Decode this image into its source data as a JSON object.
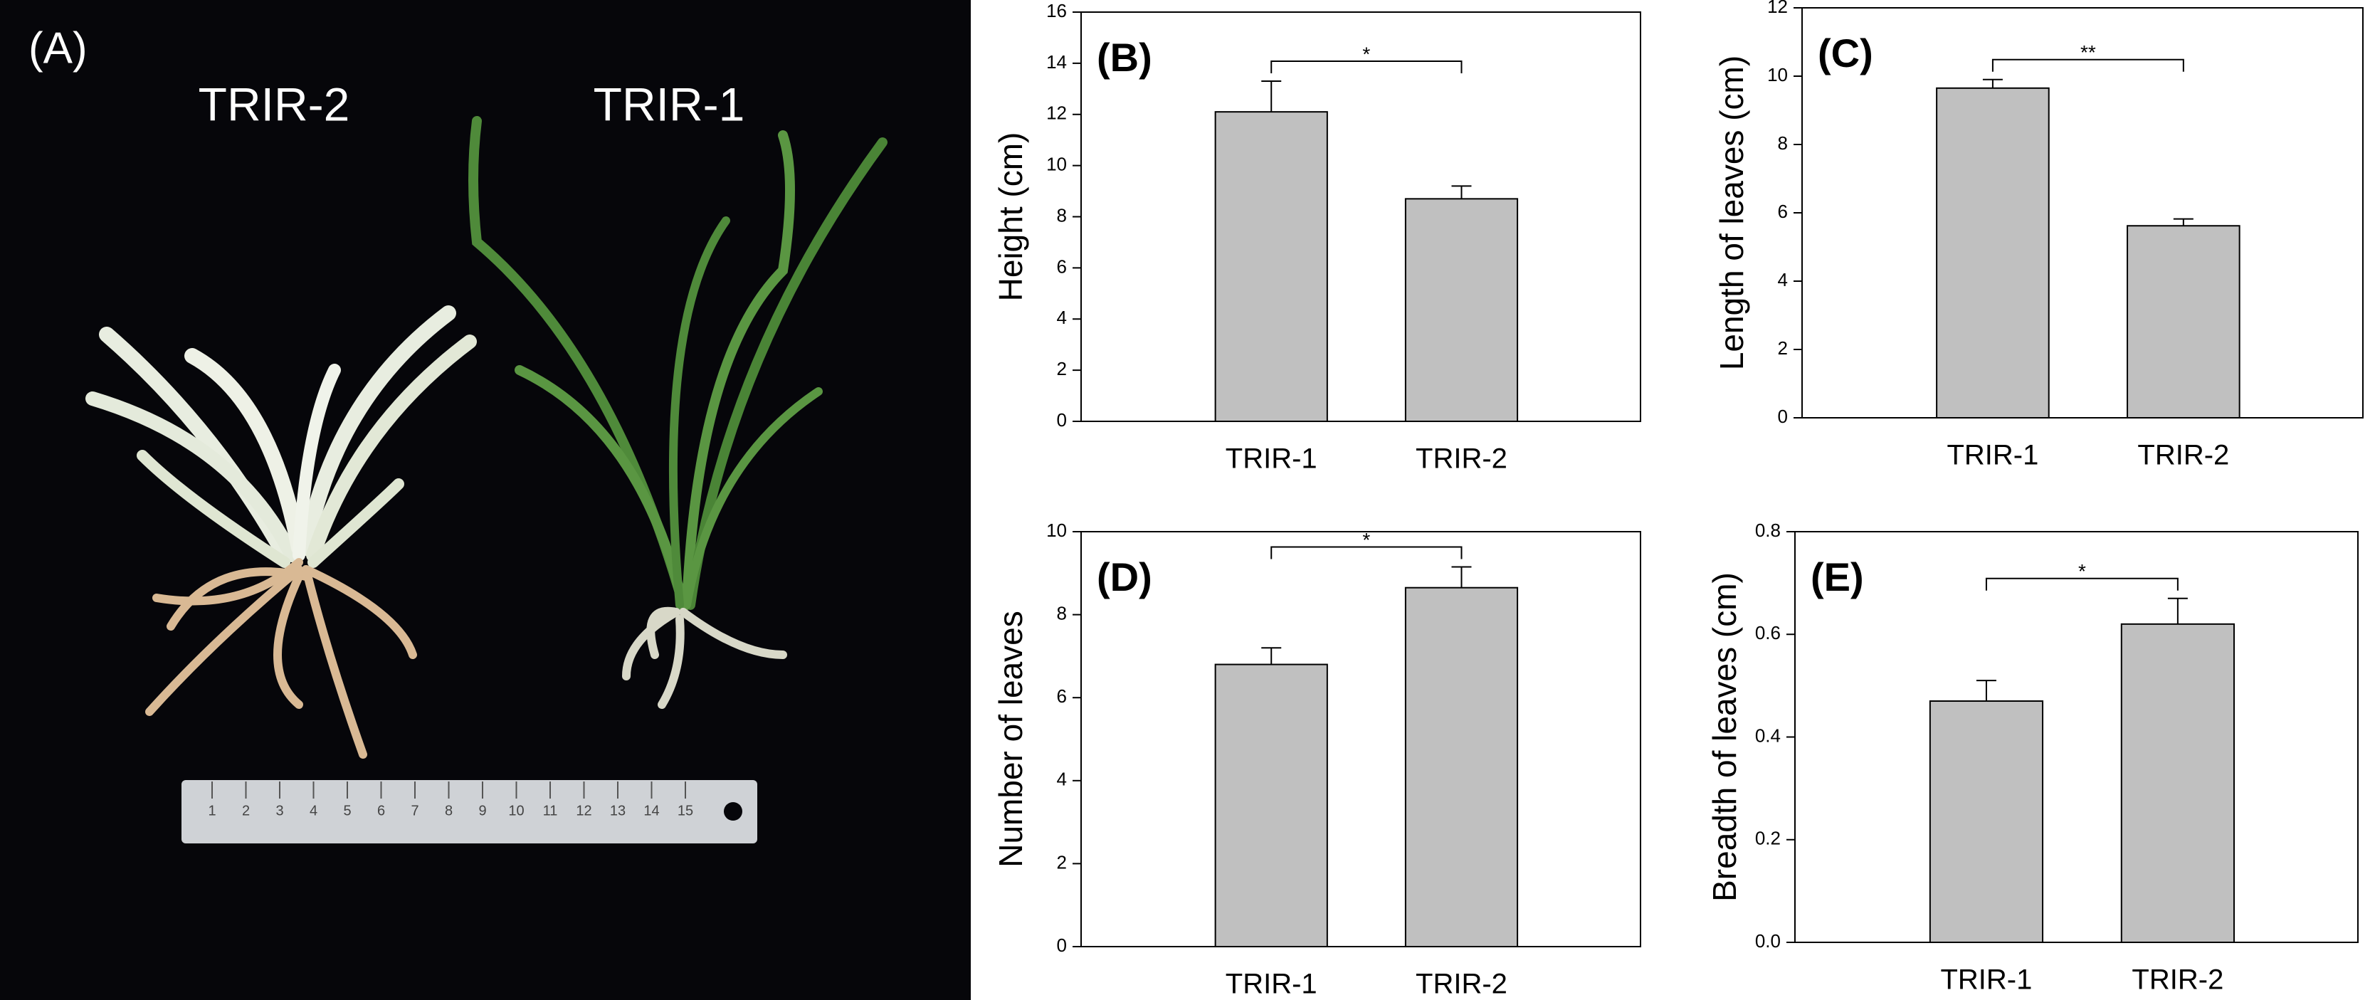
{
  "photo": {
    "label": "(A)",
    "specimens": [
      "TRIR-2",
      "TRIR-1"
    ],
    "ruler_numbers": [
      1,
      2,
      3,
      4,
      5,
      6,
      7,
      8,
      9,
      10,
      11,
      12,
      13,
      14,
      15
    ]
  },
  "chart_data": [
    {
      "type": "bar",
      "panel": "(B)",
      "ylabel": "Height (cm)",
      "categories": [
        "TRIR-1",
        "TRIR-2"
      ],
      "values": [
        12.1,
        8.7
      ],
      "errors": [
        1.2,
        0.5
      ],
      "color": "#c0c0c0",
      "ylim": [
        0,
        16
      ],
      "yticks": [
        0,
        2,
        4,
        6,
        8,
        10,
        12,
        14,
        16
      ],
      "significance": "*"
    },
    {
      "type": "bar",
      "panel": "(C)",
      "ylabel": "Length of leaves (cm)",
      "categories": [
        "TRIR-1",
        "TRIR-2"
      ],
      "values": [
        9.65,
        5.62
      ],
      "errors": [
        0.25,
        0.2
      ],
      "color": "#c0c0c0",
      "ylim": [
        0,
        12
      ],
      "yticks": [
        0,
        2,
        4,
        6,
        8,
        10,
        12
      ],
      "significance": "**"
    },
    {
      "type": "bar",
      "panel": "(D)",
      "ylabel": "Number of leaves",
      "categories": [
        "TRIR-1",
        "TRIR-2"
      ],
      "values": [
        6.8,
        8.65
      ],
      "errors": [
        0.4,
        0.5
      ],
      "color": "#c0c0c0",
      "ylim": [
        0,
        10
      ],
      "yticks": [
        0,
        2,
        4,
        6,
        8,
        10
      ],
      "significance": "*"
    },
    {
      "type": "bar",
      "panel": "(E)",
      "ylabel": "Breadth of leaves (cm)",
      "categories": [
        "TRIR-1",
        "TRIR-2"
      ],
      "values": [
        0.47,
        0.62
      ],
      "errors": [
        0.04,
        0.05
      ],
      "color": "#c0c0c0",
      "ylim": [
        0,
        0.8
      ],
      "yticks": [
        {
          "value": 0,
          "label": "0.0"
        },
        0.2,
        0.4,
        0.6,
        0.8
      ],
      "significance": "*"
    }
  ]
}
